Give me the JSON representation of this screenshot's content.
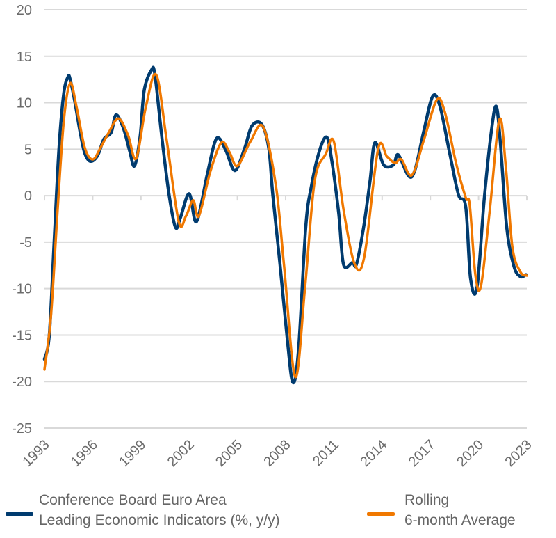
{
  "chart_data": {
    "type": "line",
    "title": "",
    "xlabel": "",
    "ylabel": "",
    "xlim": [
      1993,
      2023
    ],
    "ylim": [
      -25,
      20
    ],
    "x_ticks": [
      "1993",
      "1996",
      "1999",
      "2002",
      "2005",
      "2008",
      "2011",
      "2014",
      "2017",
      "2020",
      "2023"
    ],
    "y_ticks": [
      "20",
      "15",
      "10",
      "5",
      "0",
      "-5",
      "-10",
      "-15",
      "-20",
      "-25"
    ],
    "grid": "horizontal",
    "legend_position": "bottom",
    "series": [
      {
        "name": "Conference Board Euro Area Leading Economic Indicators (%, y/y)",
        "color": "#003b6f",
        "x": [
          1993.0,
          1993.3,
          1993.6,
          1993.9,
          1994.2,
          1994.47,
          1994.6,
          1994.9,
          1995.2,
          1995.5,
          1995.85,
          1996.3,
          1996.7,
          1997.15,
          1997.45,
          1997.9,
          1998.3,
          1998.6,
          1998.95,
          1999.2,
          1999.65,
          1999.87,
          2000.3,
          2000.75,
          2001.15,
          2001.45,
          2002.0,
          2002.45,
          2003.1,
          2003.55,
          2003.85,
          2004.3,
          2004.85,
          2005.45,
          2005.9,
          2006.5,
          2006.95,
          2007.2,
          2007.65,
          2008.1,
          2008.45,
          2008.8,
          2009.25,
          2009.6,
          2010.1,
          2010.55,
          2010.85,
          2011.3,
          2011.6,
          2012.15,
          2012.4,
          2012.85,
          2013.25,
          2013.55,
          2014.1,
          2014.7,
          2015.0,
          2015.65,
          2016.05,
          2016.6,
          2017.15,
          2017.6,
          2018.2,
          2018.75,
          2019.2,
          2019.5,
          2019.9,
          2020.35,
          2020.8,
          2021.1,
          2021.35,
          2021.75,
          2022.2,
          2022.6,
          2022.95
        ],
        "y": [
          -17.6,
          -15,
          -5,
          5,
          11,
          12.8,
          12.5,
          10,
          7.0,
          4.6,
          3.7,
          4.3,
          6.1,
          6.8,
          8.7,
          7.3,
          4.8,
          3.2,
          6.4,
          11.3,
          13.5,
          13.0,
          6.3,
          0.1,
          -3.4,
          -2.4,
          0.2,
          -2.8,
          2.1,
          5.5,
          6.2,
          4.8,
          2.7,
          5.1,
          7.5,
          7.7,
          5.1,
          0.1,
          -7.4,
          -15.4,
          -20.1,
          -16.6,
          -3.4,
          1.0,
          4.8,
          6.3,
          4.0,
          -1.9,
          -7.4,
          -7.2,
          -7.4,
          -3.4,
          1.6,
          5.7,
          3.3,
          3.3,
          4.4,
          2.1,
          2.8,
          7.0,
          10.7,
          9.6,
          4.6,
          0.1,
          -1.2,
          -8.9,
          -9.9,
          -0.4,
          7.0,
          9.6,
          5.8,
          -3.4,
          -7.6,
          -8.7,
          -8.5
        ]
      },
      {
        "name": "Rolling 6-month Average",
        "color": "#f07800",
        "x": [
          1993.0,
          1993.4,
          1993.8,
          1994.2,
          1994.6,
          1995.0,
          1995.5,
          1996.0,
          1996.5,
          1997.0,
          1997.6,
          1998.2,
          1998.7,
          1999.3,
          1999.95,
          2000.6,
          2001.35,
          2001.8,
          2002.25,
          2002.6,
          2003.3,
          2004.0,
          2004.5,
          2005.0,
          2005.8,
          2006.6,
          2007.4,
          2007.9,
          2008.6,
          2009.2,
          2009.8,
          2010.5,
          2011.0,
          2011.6,
          2012.3,
          2012.9,
          2013.75,
          2014.3,
          2014.8,
          2015.2,
          2015.85,
          2016.6,
          2017.4,
          2017.9,
          2018.6,
          2019.2,
          2019.45,
          2019.8,
          2020.15,
          2020.7,
          2021.3,
          2021.7,
          2022.1,
          2022.6,
          2023.0
        ],
        "y": [
          -18.7,
          -13,
          -2,
          8,
          12.1,
          9.5,
          5.2,
          3.9,
          5.2,
          6.8,
          8.3,
          6.5,
          4.0,
          9.5,
          13.0,
          6.0,
          -2.8,
          -2.2,
          -0.5,
          -2.2,
          2.5,
          5.7,
          4.7,
          3.2,
          5.8,
          7.4,
          1.0,
          -7.5,
          -19.5,
          -10,
          1.5,
          4.5,
          5.8,
          -1.5,
          -7.4,
          -6.5,
          5.0,
          4.2,
          3.5,
          3.9,
          2.2,
          6.0,
          10.3,
          9.0,
          3.5,
          -0.2,
          -1.0,
          -8.5,
          -9.7,
          -1.5,
          8.2,
          3.0,
          -5.5,
          -8.2,
          -8.6
        ]
      }
    ]
  },
  "legend": {
    "series1_line1": "Conference Board Euro Area",
    "series1_line2": "Leading Economic Indicators (%, y/y)",
    "series2_line1": "Rolling",
    "series2_line2": "6-month Average"
  }
}
